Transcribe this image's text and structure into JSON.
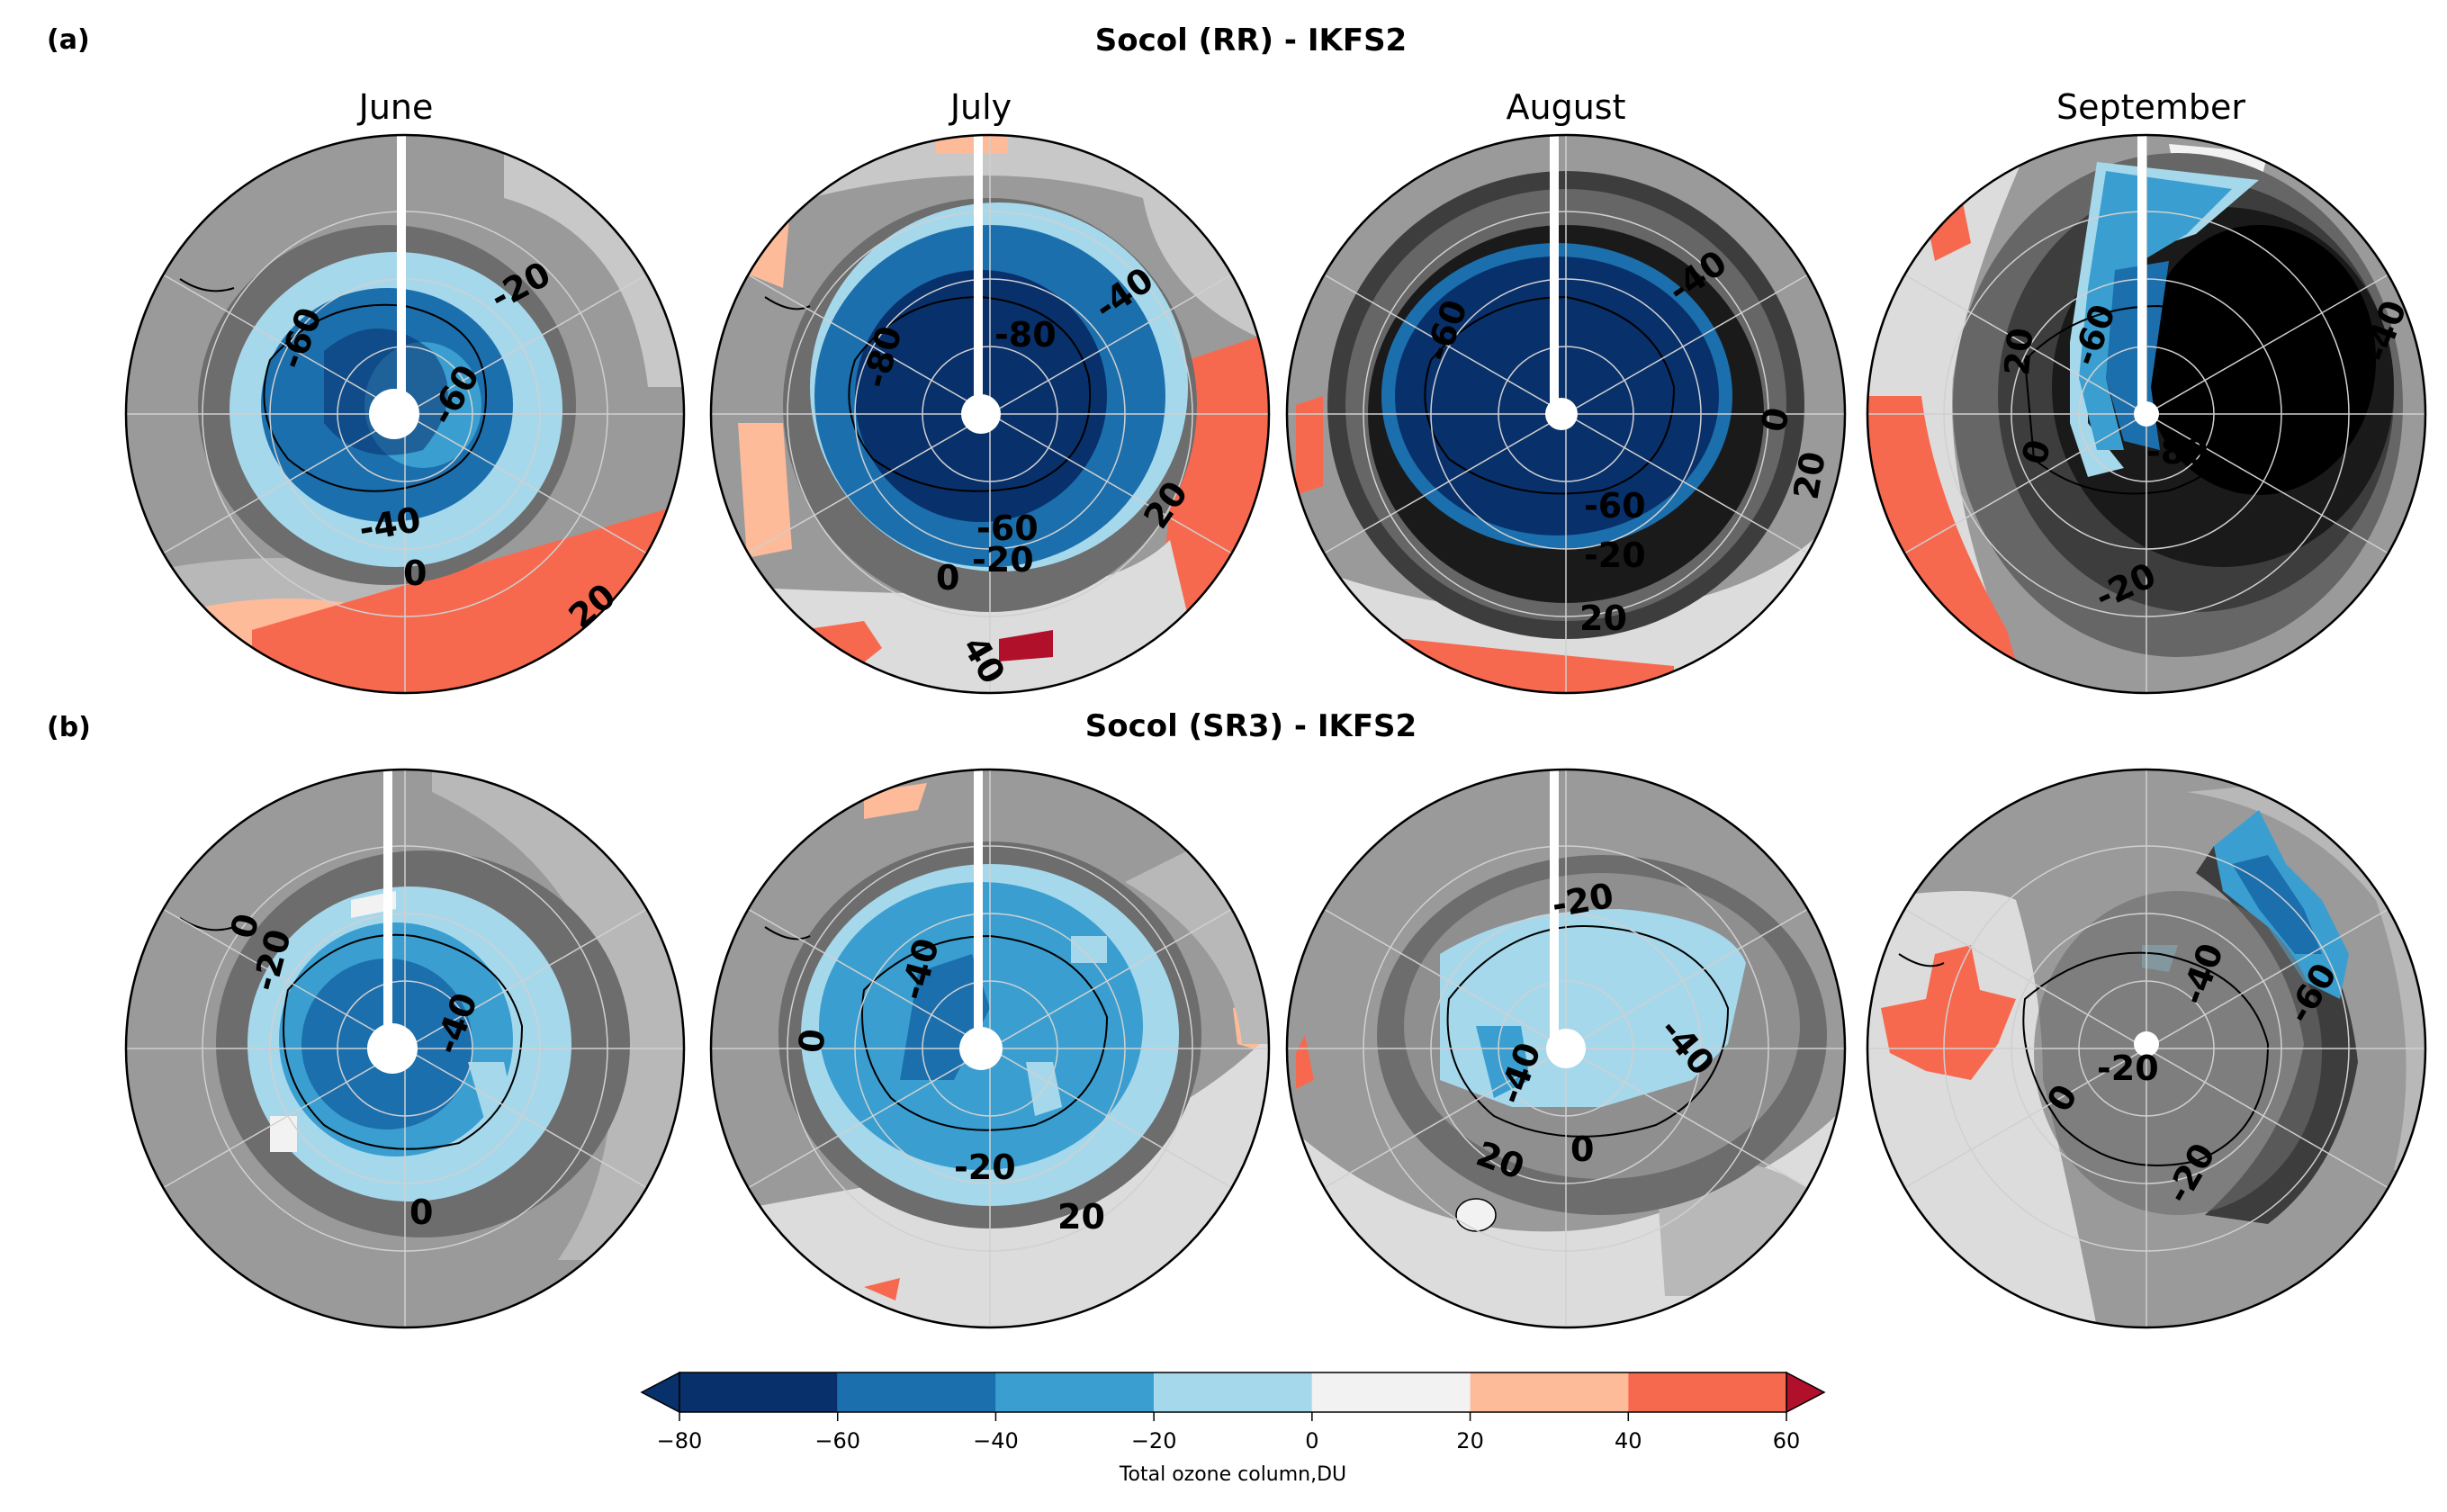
{
  "figure": {
    "panels": [
      {
        "label": "(a)",
        "title": "Socol (RR) - IKFS2",
        "maps": [
          {
            "month": "June",
            "contour_labels": [
              "-20",
              "-60",
              "-60",
              "-40",
              "0",
              "20"
            ]
          },
          {
            "month": "July",
            "contour_labels": [
              "-40",
              "-80",
              "-80",
              "-60",
              "0",
              "-20",
              "20",
              "40"
            ]
          },
          {
            "month": "August",
            "contour_labels": [
              "-40",
              "-60",
              "-60",
              "0",
              "20",
              "-20",
              "20"
            ]
          },
          {
            "month": "September",
            "contour_labels": [
              "-40",
              "-60",
              "20",
              "0",
              "-80",
              "-20"
            ]
          }
        ]
      },
      {
        "label": "(b)",
        "title": "Socol (SR3) - IKFS2",
        "maps": [
          {
            "month": "",
            "contour_labels": [
              "0",
              "-20",
              "-40",
              "0"
            ]
          },
          {
            "month": "",
            "contour_labels": [
              "-40",
              "0",
              "-20",
              "20"
            ]
          },
          {
            "month": "",
            "contour_labels": [
              "-20",
              "-40",
              "-40",
              "20",
              "0"
            ]
          },
          {
            "month": "",
            "contour_labels": [
              "-40",
              "-60",
              "0",
              "-20",
              "-20"
            ]
          }
        ]
      }
    ],
    "colorbar": {
      "label": "Total ozone column,DU",
      "bounds": [
        -80,
        -60,
        -40,
        -20,
        0,
        20,
        40,
        60
      ],
      "tick_labels": [
        "−80",
        "−60",
        "−40",
        "−20",
        "0",
        "20",
        "40",
        "60"
      ],
      "colors": [
        "#08306b",
        "#1c6fad",
        "#3a9fd0",
        "#a6d8ec",
        "#f2f2f2",
        "#fdbb9a",
        "#f7694f",
        "#b0102a"
      ],
      "extend": "both"
    },
    "palette": {
      "negative_diff_grays": [
        "#1a1a1a",
        "#3d3d3d",
        "#666666",
        "#8f8f8f",
        "#b5b5b5",
        "#dcdcdc"
      ],
      "land_outline": "#000000"
    }
  }
}
